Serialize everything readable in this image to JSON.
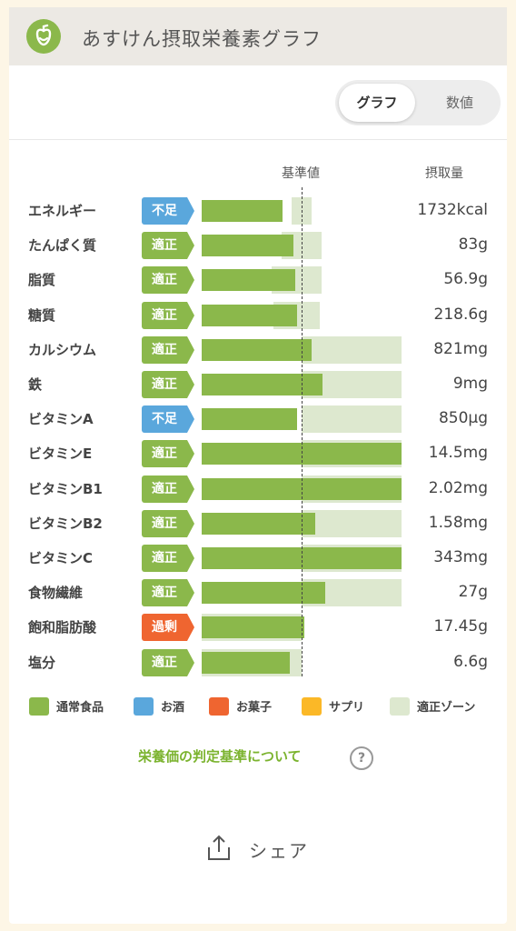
{
  "header": {
    "title": "あすけん摂取栄養素グラフ",
    "logo_icon": "asken-apple-logo"
  },
  "view_toggle": {
    "graph_label": "グラフ",
    "value_label": "数値",
    "selected": "グラフ"
  },
  "columns": {
    "reference_label": "基準値",
    "intake_label": "摂取量"
  },
  "status_colors": {
    "不足": "#5aa7dc",
    "適正": "#8bb84b",
    "過剰": "#ef6530"
  },
  "chart_data": {
    "type": "bar",
    "reference_value_percent": 100,
    "xlim_percent": [
      0,
      200
    ],
    "categories": [
      "エネルギー",
      "たんぱく質",
      "脂質",
      "糖質",
      "カルシウム",
      "鉄",
      "ビタミンA",
      "ビタミンE",
      "ビタミンB1",
      "ビタミンB2",
      "ビタミンC",
      "食物繊維",
      "飽和脂肪酸",
      "塩分"
    ],
    "status": [
      "不足",
      "適正",
      "適正",
      "適正",
      "適正",
      "適正",
      "不足",
      "適正",
      "適正",
      "適正",
      "適正",
      "適正",
      "過剰",
      "適正"
    ],
    "intake_labels": [
      "1732kcal",
      "83g",
      "56.9g",
      "218.6g",
      "821mg",
      "9mg",
      "850μg",
      "14.5mg",
      "2.02mg",
      "1.58mg",
      "343mg",
      "27g",
      "17.45g",
      "6.6g"
    ],
    "series": [
      {
        "name": "通常食品",
        "values": [
          81,
          92,
          94,
          95,
          110,
          121,
          95,
          200,
          200,
          114,
          200,
          124,
          103,
          88
        ]
      }
    ],
    "adequate_zone_percent": [
      [
        90,
        110
      ],
      [
        80,
        120
      ],
      [
        70,
        120
      ],
      [
        72,
        118
      ],
      [
        100,
        200
      ],
      [
        100,
        200
      ],
      [
        100,
        200
      ],
      [
        100,
        200
      ],
      [
        100,
        200
      ],
      [
        100,
        200
      ],
      [
        100,
        200
      ],
      [
        100,
        200
      ],
      [
        0,
        100
      ],
      [
        0,
        100
      ]
    ],
    "legend": [
      {
        "label": "通常食品",
        "color": "#8bb84b"
      },
      {
        "label": "お酒",
        "color": "#5aa7dc"
      },
      {
        "label": "お菓子",
        "color": "#ef6530"
      },
      {
        "label": "サプリ",
        "color": "#fbb827"
      },
      {
        "label": "適正ゾーン",
        "color": "#dde8cf"
      }
    ]
  },
  "links": {
    "criteria_label": "栄養価の判定基準について",
    "help_icon": "question-circle-icon",
    "help_glyph": "?"
  },
  "share": {
    "label": "シェア",
    "icon": "share-upload-icon"
  }
}
